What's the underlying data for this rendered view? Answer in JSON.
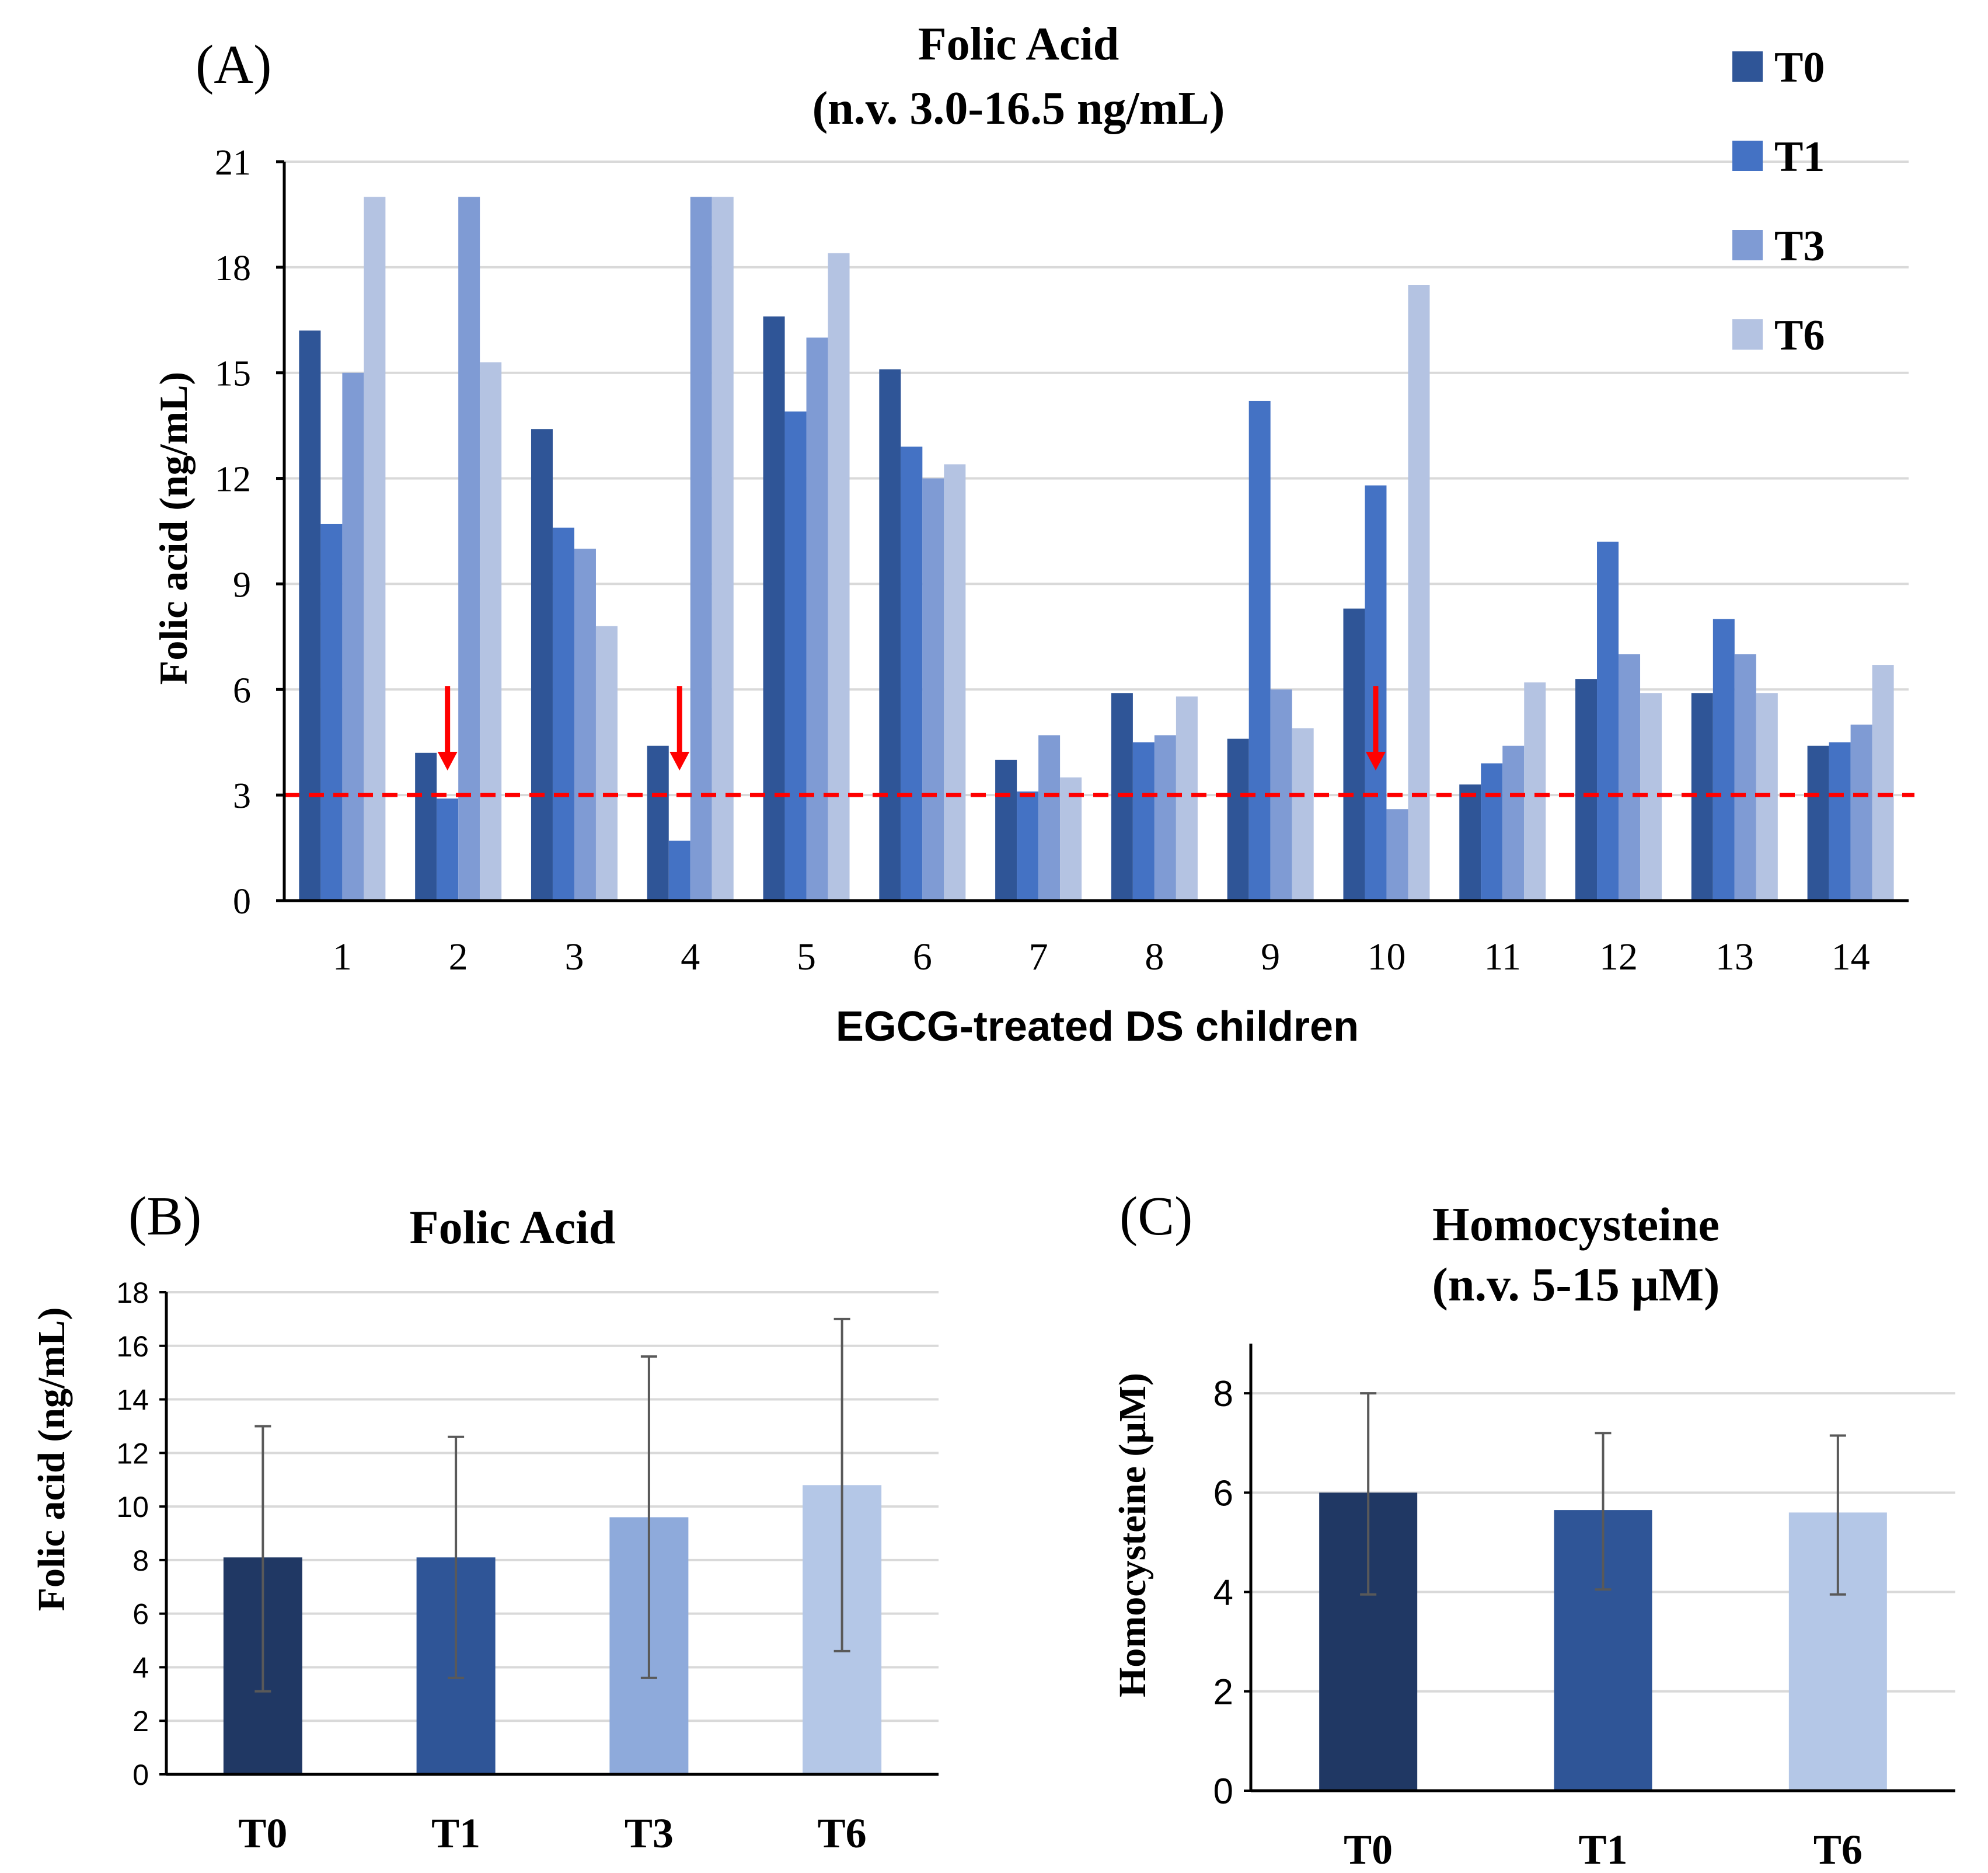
{
  "chart_data": [
    {
      "panel": "(A)",
      "type": "bar",
      "title": "Folic Acid",
      "subtitle": "(n.v. 3.0-16.5 ng/mL)",
      "xlabel": "EGCG-treated DS children",
      "ylabel": "Folic acid (ng/mL)",
      "ylim": [
        0,
        21
      ],
      "yticks": [
        0,
        3,
        6,
        9,
        12,
        15,
        18,
        21
      ],
      "grid": true,
      "legend_position": "top-right",
      "categories": [
        "1",
        "2",
        "3",
        "4",
        "5",
        "6",
        "7",
        "8",
        "9",
        "10",
        "11",
        "12",
        "13",
        "14"
      ],
      "series": [
        {
          "name": "T0",
          "color": "#2f5597",
          "values": [
            16.2,
            4.2,
            13.4,
            4.4,
            16.6,
            15.1,
            4.0,
            5.9,
            4.6,
            8.3,
            3.3,
            6.3,
            5.9,
            4.4
          ]
        },
        {
          "name": "T1",
          "color": "#4472c4",
          "values": [
            10.7,
            2.9,
            10.6,
            1.7,
            13.9,
            12.9,
            3.1,
            4.5,
            14.2,
            11.8,
            3.9,
            10.2,
            8.0,
            4.5
          ]
        },
        {
          "name": "T3",
          "color": "#7f9bd4",
          "values": [
            15.0,
            20.0,
            10.0,
            20.0,
            16.0,
            12.0,
            4.7,
            4.7,
            6.0,
            2.6,
            4.4,
            7.0,
            7.0,
            5.0
          ]
        },
        {
          "name": "T6",
          "color": "#b4c3e2",
          "values": [
            20.0,
            15.3,
            7.8,
            20.0,
            18.4,
            12.4,
            3.5,
            5.8,
            4.9,
            17.5,
            6.2,
            5.9,
            5.9,
            6.7
          ]
        }
      ],
      "reference_line": {
        "value": 3,
        "color": "#ff0000"
      },
      "arrows": {
        "categories": [
          "2",
          "4",
          "10"
        ],
        "color": "#ff0000"
      }
    },
    {
      "panel": "(B)",
      "type": "bar",
      "title": "Folic Acid",
      "ylabel": "Folic acid (ng/mL)",
      "ylim": [
        0,
        18
      ],
      "yticks": [
        0,
        2,
        4,
        6,
        8,
        10,
        12,
        14,
        16,
        18
      ],
      "grid": true,
      "categories": [
        "T0",
        "T1",
        "T3",
        "T6"
      ],
      "values": [
        8.1,
        8.1,
        9.6,
        10.8
      ],
      "error_low": [
        3.1,
        3.6,
        3.6,
        4.6
      ],
      "error_high": [
        13.0,
        12.6,
        15.6,
        17.0
      ],
      "colors": [
        "#203864",
        "#2f5597",
        "#8eaadb",
        "#b4c7e7"
      ]
    },
    {
      "panel": "(C)",
      "type": "bar",
      "title": "Homocysteine",
      "subtitle": "(n.v. 5-15 μM)",
      "ylabel": "Homocysteine (μM)",
      "ylim": [
        0,
        9
      ],
      "yticks": [
        0,
        2,
        4,
        6,
        8
      ],
      "grid": true,
      "categories": [
        "T0",
        "T1",
        "T6"
      ],
      "values": [
        6.0,
        5.65,
        5.6
      ],
      "error_low": [
        3.95,
        4.05,
        3.95
      ],
      "error_high": [
        8.0,
        7.2,
        7.15
      ],
      "colors": [
        "#203864",
        "#2f5597",
        "#b4c7e7"
      ]
    }
  ]
}
